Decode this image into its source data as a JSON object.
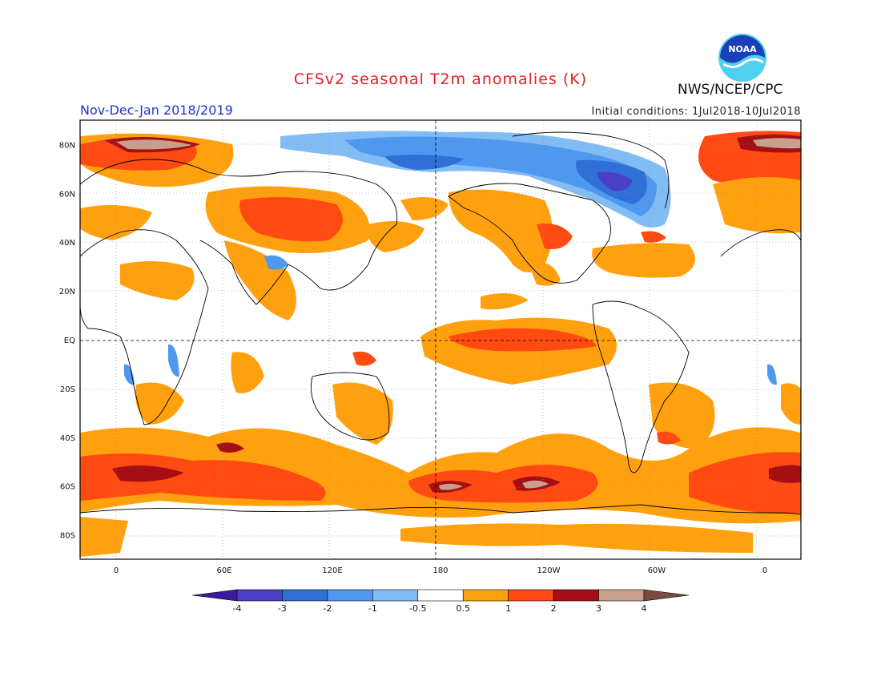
{
  "header": {
    "title": "CFSv2 seasonal T2m anomalies (K)",
    "season": "Nov-Dec-Jan 2018/2019",
    "initial_conditions": "Initial conditions: 1Jul2018-10Jul2018",
    "agency": "NWS/NCEP/CPC",
    "logo_text": "NOAA"
  },
  "map": {
    "projection": "equirectangular",
    "lon_range": [
      -20,
      380
    ],
    "lat_range": [
      -90,
      90
    ],
    "lat_ticks": [
      "80N",
      "60N",
      "40N",
      "20N",
      "EQ",
      "20S",
      "40S",
      "60S",
      "80S"
    ],
    "lon_ticks": [
      "0",
      "60E",
      "120E",
      "180",
      "120W",
      "60W",
      "0"
    ]
  },
  "legend": {
    "labels": [
      "-4",
      "-3",
      "-2",
      "-1",
      "-0.5",
      "0.5",
      "1",
      "2",
      "3",
      "4"
    ],
    "colors": [
      "#3a1a9e",
      "#4a40c8",
      "#2f6fd6",
      "#4f98ef",
      "#82bcf5",
      "#ffffff",
      "#ffa10f",
      "#ff4a12",
      "#a50f14",
      "#c8a08c",
      "#7a4a3e"
    ]
  }
}
